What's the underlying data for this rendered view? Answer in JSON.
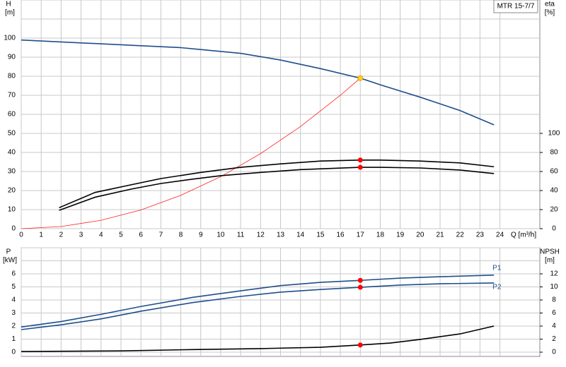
{
  "chart_data": [
    {
      "type": "line",
      "annotation": "MTR 15-7/7",
      "y_label": "H",
      "y_unit": "[m]",
      "y2_label": "eta",
      "y2_unit": "[%]",
      "x_label": "Q [m³/h]",
      "xlim": [
        0,
        26
      ],
      "xticks": [
        0,
        1,
        2,
        3,
        4,
        5,
        6,
        7,
        8,
        9,
        10,
        11,
        12,
        13,
        14,
        15,
        16,
        17,
        18,
        19,
        20,
        21,
        22,
        23,
        24
      ],
      "ylim": [
        0,
        120
      ],
      "yticks": [
        0,
        10,
        20,
        30,
        40,
        50,
        60,
        70,
        80,
        90,
        100
      ],
      "y2lim": [
        0,
        240
      ],
      "y2ticks": [
        0,
        20,
        40,
        60,
        80,
        100
      ],
      "grid": true,
      "series": [
        {
          "color": "#1f4e8c",
          "x": [
            0,
            2,
            4,
            6,
            8,
            9,
            11,
            13,
            15,
            17,
            18,
            20,
            22,
            23.7
          ],
          "values": [
            99,
            98,
            97,
            96,
            95,
            94,
            92,
            88.5,
            84,
            79,
            75.5,
            69,
            62,
            54.5
          ]
        },
        {
          "color": "#ff2020",
          "x": [
            0,
            2,
            4,
            6,
            8,
            10,
            12,
            14,
            16,
            17
          ],
          "values": [
            0,
            1.1,
            4.4,
            9.8,
            17.5,
            27.3,
            39.4,
            53.6,
            70,
            79
          ]
        },
        {
          "color": "#000000",
          "axis": "y2",
          "x": [
            1.9,
            3.7,
            5.5,
            7,
            9,
            11,
            13,
            15,
            17,
            18,
            20,
            22,
            23.7
          ],
          "values": [
            22,
            38,
            46,
            52.6,
            59,
            64.4,
            68,
            71,
            72,
            72,
            71,
            69,
            65
          ]
        },
        {
          "color": "#000000",
          "axis": "y2",
          "x": [
            1.9,
            3.7,
            5.5,
            7,
            8.6,
            10,
            12,
            14,
            17,
            18,
            20,
            22,
            23.7
          ],
          "values": [
            19.3,
            33,
            41.5,
            47.4,
            52,
            55.6,
            59,
            62,
            64.4,
            64.4,
            63.7,
            61.5,
            57.8
          ]
        }
      ],
      "markers": [
        {
          "x": 17,
          "y": 79,
          "color": "#ffd020"
        },
        {
          "x": 17,
          "y": 72,
          "color": "#ff0000",
          "axis": "y2"
        },
        {
          "x": 17,
          "y": 64.4,
          "color": "#ff0000",
          "axis": "y2"
        }
      ]
    },
    {
      "type": "line",
      "y_label": "P",
      "y_unit": "[kW]",
      "y2_label": "NPSH",
      "y2_unit": "[m]",
      "xlim": [
        0,
        26
      ],
      "xticks": [
        0,
        1,
        2,
        3,
        4,
        5,
        6,
        7,
        8,
        9,
        10,
        11,
        12,
        13,
        14,
        15,
        16,
        17,
        18,
        19,
        20,
        21,
        22,
        23,
        24
      ],
      "ylim": [
        0,
        8
      ],
      "yticks": [
        0,
        1,
        2,
        3,
        4,
        5,
        6
      ],
      "y2lim": [
        0,
        16
      ],
      "y2ticks": [
        0,
        2,
        4,
        6,
        8,
        10,
        12
      ],
      "grid": true,
      "series": [
        {
          "name": "P1",
          "color": "#1f4e8c",
          "x": [
            0,
            2,
            4,
            6,
            8.6,
            11,
            13,
            15,
            17,
            19,
            21,
            23.7
          ],
          "values": [
            1.93,
            2.35,
            2.9,
            3.5,
            4.2,
            4.7,
            5.1,
            5.35,
            5.5,
            5.67,
            5.78,
            5.9
          ]
        },
        {
          "name": "P2",
          "color": "#1f4e8c",
          "x": [
            0,
            2,
            4,
            6,
            8.6,
            11,
            13,
            15,
            17,
            19,
            21,
            23.7
          ],
          "values": [
            1.73,
            2.1,
            2.55,
            3.14,
            3.8,
            4.27,
            4.6,
            4.8,
            4.97,
            5.14,
            5.24,
            5.3
          ]
        },
        {
          "color": "#000000",
          "axis": "y2",
          "x": [
            0,
            5,
            8.6,
            12,
            15,
            17,
            18.5,
            20,
            22,
            23.7
          ],
          "values": [
            0.1,
            0.2,
            0.4,
            0.55,
            0.75,
            1.1,
            1.4,
            1.95,
            2.8,
            4.0
          ]
        }
      ],
      "markers": [
        {
          "x": 17,
          "y": 5.5,
          "color": "#ff0000"
        },
        {
          "x": 17,
          "y": 4.97,
          "color": "#ff0000"
        },
        {
          "x": 17,
          "y": 1.1,
          "color": "#ff0000",
          "axis": "y2"
        }
      ]
    }
  ]
}
